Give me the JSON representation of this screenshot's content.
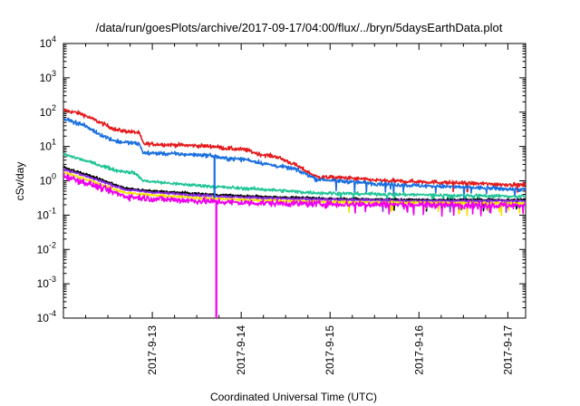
{
  "chart_data": {
    "type": "line",
    "title": "/data/run/goesPlots/archive/2017-09-17/04:00/flux/../bryn/5daysEarthData.plot",
    "xlabel": "Coordinated Universal Time (UTC)",
    "ylabel": "cSv/day",
    "y_scale": "log",
    "ylim_exponents": [
      -4,
      4
    ],
    "ytick_exponents": [
      -4,
      -3,
      -2,
      -1,
      0,
      1,
      2,
      3,
      4
    ],
    "ytick_base": "10",
    "xlim_days": [
      12.0,
      17.2
    ],
    "xticks": [
      {
        "day": 13,
        "label": "2017-9-13"
      },
      {
        "day": 14,
        "label": "2017-9-14"
      },
      {
        "day": 15,
        "label": "2017-9-15"
      },
      {
        "day": 16,
        "label": "2017-9-16"
      },
      {
        "day": 17,
        "label": "2017-9-17"
      }
    ],
    "grid": false,
    "legend": "none",
    "series": [
      {
        "color": "#e41a1c",
        "noise": 0.05,
        "points": [
          [
            12.0,
            115
          ],
          [
            12.2,
            90
          ],
          [
            12.45,
            45
          ],
          [
            12.6,
            30
          ],
          [
            12.85,
            25
          ],
          [
            12.9,
            12
          ],
          [
            13.3,
            11
          ],
          [
            13.7,
            10
          ],
          [
            13.8,
            9
          ],
          [
            14.05,
            8
          ],
          [
            14.2,
            6
          ],
          [
            14.4,
            5
          ],
          [
            14.6,
            3
          ],
          [
            14.75,
            1.8
          ],
          [
            14.85,
            1.3
          ],
          [
            15.2,
            1.2
          ],
          [
            15.6,
            1.0
          ],
          [
            16.0,
            0.95
          ],
          [
            16.5,
            0.85
          ],
          [
            17.2,
            0.75
          ]
        ]
      },
      {
        "color": "#1a6fe0",
        "noise": 0.05,
        "points": [
          [
            12.0,
            65
          ],
          [
            12.2,
            45
          ],
          [
            12.45,
            20
          ],
          [
            12.6,
            14
          ],
          [
            12.85,
            12
          ],
          [
            12.9,
            6.5
          ],
          [
            13.3,
            6
          ],
          [
            13.65,
            5.5
          ],
          [
            13.8,
            4.5
          ],
          [
            14.05,
            4.2
          ],
          [
            14.3,
            3.0
          ],
          [
            14.6,
            2.2
          ],
          [
            14.75,
            1.5
          ],
          [
            14.85,
            1.1
          ],
          [
            15.2,
            0.95
          ],
          [
            15.6,
            0.8
          ],
          [
            16.0,
            0.72
          ],
          [
            16.5,
            0.65
          ],
          [
            17.2,
            0.55
          ]
        ]
      },
      {
        "color": "#1fc596",
        "noise": 0.04,
        "points": [
          [
            12.0,
            6.0
          ],
          [
            12.3,
            3.5
          ],
          [
            12.6,
            2.0
          ],
          [
            12.8,
            1.7
          ],
          [
            12.9,
            1.0
          ],
          [
            13.3,
            0.8
          ],
          [
            13.8,
            0.65
          ],
          [
            14.3,
            0.55
          ],
          [
            14.8,
            0.45
          ],
          [
            15.3,
            0.42
          ],
          [
            15.8,
            0.4
          ],
          [
            16.3,
            0.38
          ],
          [
            17.2,
            0.35
          ]
        ]
      },
      {
        "color": "#000000",
        "noise": 0.03,
        "points": [
          [
            12.0,
            2.5
          ],
          [
            12.3,
            1.4
          ],
          [
            12.7,
            0.6
          ],
          [
            13.0,
            0.5
          ],
          [
            13.5,
            0.42
          ],
          [
            14.0,
            0.36
          ],
          [
            14.5,
            0.33
          ],
          [
            15.0,
            0.3
          ],
          [
            16.0,
            0.28
          ],
          [
            17.2,
            0.28
          ]
        ]
      },
      {
        "color": "#8a2be2",
        "noise": 0.03,
        "points": [
          [
            12.0,
            2.2
          ],
          [
            12.3,
            1.25
          ],
          [
            12.7,
            0.55
          ],
          [
            13.0,
            0.46
          ],
          [
            13.5,
            0.38
          ],
          [
            14.0,
            0.33
          ],
          [
            14.5,
            0.3
          ],
          [
            15.0,
            0.28
          ],
          [
            16.0,
            0.26
          ],
          [
            17.2,
            0.26
          ]
        ]
      },
      {
        "color": "#f5e400",
        "noise": 0.03,
        "points": [
          [
            12.0,
            1.8
          ],
          [
            12.3,
            1.0
          ],
          [
            12.7,
            0.45
          ],
          [
            13.0,
            0.38
          ],
          [
            13.5,
            0.32
          ],
          [
            14.0,
            0.28
          ],
          [
            14.5,
            0.26
          ],
          [
            15.0,
            0.24
          ],
          [
            16.0,
            0.23
          ],
          [
            17.2,
            0.22
          ]
        ]
      },
      {
        "color": "#ee00ee",
        "noise": 0.08,
        "points": [
          [
            12.0,
            1.4
          ],
          [
            12.3,
            0.8
          ],
          [
            12.7,
            0.35
          ],
          [
            13.0,
            0.3
          ],
          [
            13.5,
            0.26
          ],
          [
            14.0,
            0.23
          ],
          [
            14.5,
            0.22
          ],
          [
            15.0,
            0.21
          ],
          [
            16.0,
            0.2
          ],
          [
            17.2,
            0.19
          ]
        ]
      }
    ],
    "dropouts": [
      {
        "day": 13.7,
        "color": "#1a6fe0",
        "from": 5.5,
        "to": 0.35
      },
      {
        "day": 13.72,
        "color": "#ee00ee",
        "from": 0.27,
        "to": 0.0001
      }
    ]
  }
}
